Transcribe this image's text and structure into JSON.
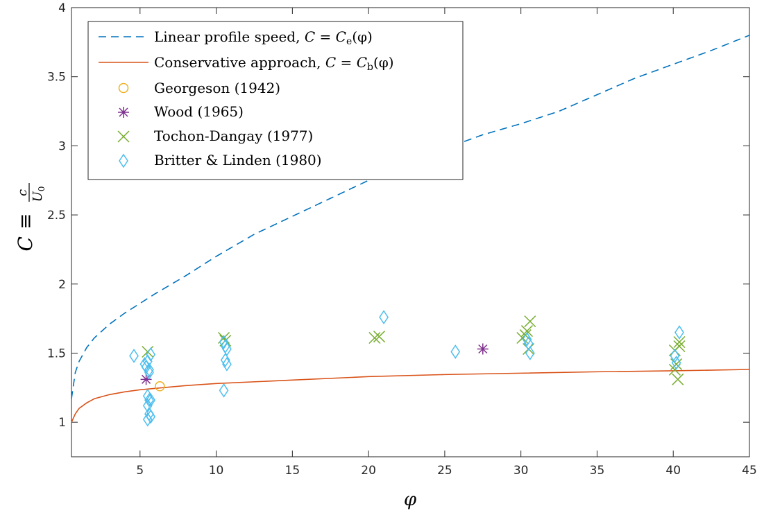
{
  "chart_data": {
    "type": "scatter",
    "xlabel": "φ",
    "ylabel": "C ≡ c/U0",
    "ylabel_parts": {
      "lhs": "C",
      "equiv": "≡",
      "num": "c",
      "den": "U",
      "den_sub": "0"
    },
    "xlim": [
      0.5,
      45
    ],
    "ylim": [
      0.75,
      4
    ],
    "xticks": [
      5,
      10,
      15,
      20,
      25,
      30,
      35,
      40,
      45
    ],
    "yticks": [
      1,
      1.5,
      2,
      2.5,
      3,
      3.5,
      4
    ],
    "xtick_labels": [
      "5",
      "10",
      "15",
      "20",
      "25",
      "30",
      "35",
      "40",
      "45"
    ],
    "ytick_labels": [
      "1",
      "1.5",
      "2",
      "2.5",
      "3",
      "3.5",
      "4"
    ],
    "grid": false,
    "legend_position": "top-left",
    "curves": [
      {
        "name": "Linear profile speed, C = Ce(φ)",
        "legend": {
          "text": "Linear profile speed, ",
          "lhs": "C",
          "eq": " = ",
          "sym": "C",
          "sub": "e",
          "arg": "(φ)"
        },
        "style": "dashed",
        "color": "#0072BD",
        "x": [
          0.5,
          0.75,
          1,
          1.5,
          2,
          3,
          4,
          5,
          6,
          8,
          10,
          12.5,
          15,
          17.5,
          20,
          22.5,
          25,
          27.5,
          30,
          32.5,
          35,
          37.5,
          40,
          42.5,
          45
        ],
        "y": [
          1.17,
          1.36,
          1.44,
          1.54,
          1.61,
          1.71,
          1.79,
          1.86,
          1.93,
          2.06,
          2.2,
          2.36,
          2.49,
          2.62,
          2.75,
          2.87,
          2.98,
          3.08,
          3.16,
          3.25,
          3.37,
          3.49,
          3.59,
          3.69,
          3.8
        ]
      },
      {
        "name": "Conservative approach, C = Cb(φ)",
        "legend": {
          "text": "Conservative approach, ",
          "lhs": "C",
          "eq": " = ",
          "sym": "C",
          "sub": "b",
          "arg": "(φ)"
        },
        "style": "solid",
        "color": "#D95319",
        "x": [
          0.5,
          0.75,
          1,
          1.5,
          2,
          3,
          4,
          5,
          6,
          8,
          10,
          15,
          20,
          25,
          30,
          35,
          40,
          45
        ],
        "y": [
          1.0,
          1.06,
          1.1,
          1.14,
          1.17,
          1.2,
          1.22,
          1.235,
          1.245,
          1.265,
          1.28,
          1.305,
          1.33,
          1.345,
          1.355,
          1.365,
          1.372,
          1.382
        ]
      }
    ],
    "series": [
      {
        "name": "Georgeson (1942)",
        "marker": "circle",
        "color": "#EDB120",
        "points": [
          [
            6.3,
            1.26
          ]
        ]
      },
      {
        "name": "Wood (1965)",
        "marker": "asterisk",
        "color": "#7E2F8E",
        "points": [
          [
            5.4,
            1.31
          ],
          [
            27.5,
            1.53
          ]
        ]
      },
      {
        "name": "Tochon-Dangay (1977)",
        "marker": "x",
        "color": "#77AC30",
        "points": [
          [
            5.5,
            1.51
          ],
          [
            10.5,
            1.61
          ],
          [
            10.6,
            1.59
          ],
          [
            20.4,
            1.61
          ],
          [
            20.7,
            1.62
          ],
          [
            30.1,
            1.61
          ],
          [
            30.3,
            1.63
          ],
          [
            30.4,
            1.66
          ],
          [
            30.5,
            1.53
          ],
          [
            30.6,
            1.73
          ],
          [
            40.1,
            1.52
          ],
          [
            40.2,
            1.42
          ],
          [
            40.1,
            1.38
          ],
          [
            40.3,
            1.31
          ],
          [
            40.4,
            1.58
          ],
          [
            40.4,
            1.55
          ]
        ]
      },
      {
        "name": "Britter & Linden (1980)",
        "marker": "diamond",
        "color": "#4DBEEE",
        "points": [
          [
            4.6,
            1.48
          ],
          [
            5.3,
            1.42
          ],
          [
            5.4,
            1.4
          ],
          [
            5.5,
            1.44
          ],
          [
            5.6,
            1.38
          ],
          [
            5.7,
            1.49
          ],
          [
            5.6,
            1.36
          ],
          [
            5.5,
            1.19
          ],
          [
            5.6,
            1.16
          ],
          [
            5.7,
            1.16
          ],
          [
            5.5,
            1.12
          ],
          [
            5.6,
            1.06
          ],
          [
            5.5,
            1.02
          ],
          [
            5.7,
            1.04
          ],
          [
            10.5,
            1.58
          ],
          [
            10.6,
            1.55
          ],
          [
            10.7,
            1.53
          ],
          [
            10.6,
            1.45
          ],
          [
            10.7,
            1.42
          ],
          [
            10.5,
            1.23
          ],
          [
            21.0,
            1.76
          ],
          [
            25.7,
            1.51
          ],
          [
            30.4,
            1.6
          ],
          [
            30.5,
            1.57
          ],
          [
            30.6,
            1.5
          ],
          [
            40.1,
            1.48
          ],
          [
            40.2,
            1.43
          ],
          [
            40.4,
            1.65
          ]
        ]
      }
    ]
  }
}
